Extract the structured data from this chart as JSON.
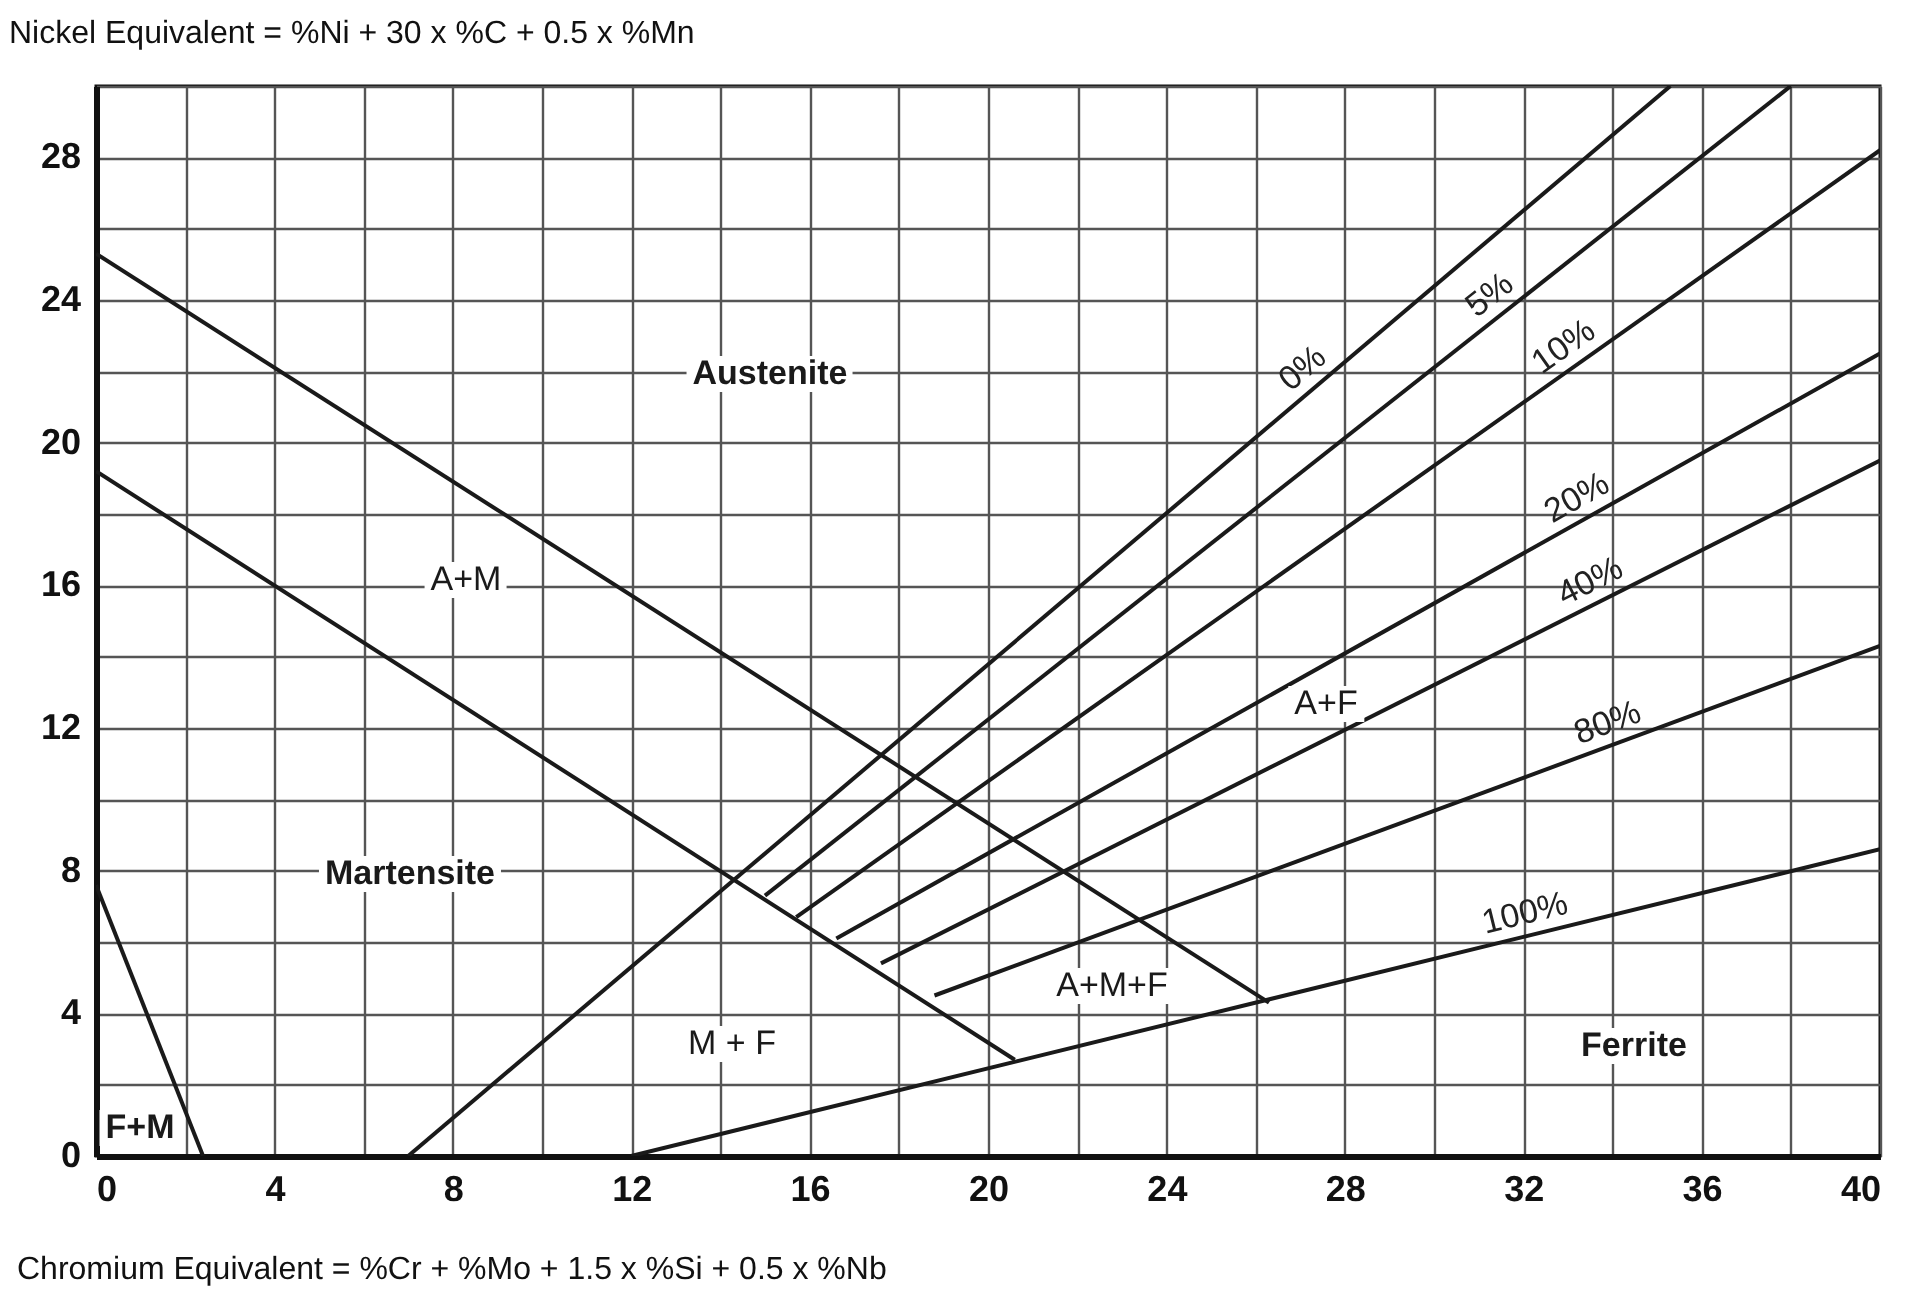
{
  "chart_data": {
    "type": "line",
    "xlabel": "Chromium   Equivalent = %Cr + %Mo + 1.5 x %Si + 0.5 x %Nb",
    "ylabel": "Nickel Equivalent = %Ni + 30 x %C + 0.5 x %Mn",
    "xlim": [
      0,
      40
    ],
    "ylim": [
      0,
      30
    ],
    "xticks": [
      0,
      {
        "value": 2,
        "label": null
      },
      4,
      {
        "value": 6,
        "label": null
      },
      8,
      {
        "value": 10,
        "label": null
      },
      12,
      {
        "value": 14,
        "label": null
      },
      16,
      {
        "value": 18,
        "label": null
      },
      20,
      {
        "value": 22,
        "label": null
      },
      24,
      {
        "value": 26,
        "label": null
      },
      28,
      {
        "value": 30,
        "label": null
      },
      32,
      {
        "value": 34,
        "label": null
      },
      36,
      {
        "value": 38,
        "label": null
      },
      40
    ],
    "yticks": [
      0,
      {
        "value": 2,
        "label": null
      },
      4,
      {
        "value": 6,
        "label": null
      },
      8,
      {
        "value": 10,
        "label": null
      },
      12,
      {
        "value": 14,
        "label": null
      },
      16,
      {
        "value": 18,
        "label": null
      },
      20,
      {
        "value": 22,
        "label": null
      },
      24,
      {
        "value": 26,
        "label": null
      },
      28,
      {
        "value": 30,
        "label": null
      }
    ],
    "grid": true,
    "marker": "none",
    "line_style": "solid",
    "series": [
      {
        "color": "#1a1a1a",
        "x": [
          0,
          2.4
        ],
        "values": [
          7.6,
          0
        ]
      },
      {
        "color": "#1a1a1a",
        "x": [
          0,
          20.6
        ],
        "values": [
          19.2,
          2.7
        ]
      },
      {
        "color": "#1a1a1a",
        "x": [
          0,
          26.3
        ],
        "values": [
          25.3,
          4.3
        ]
      },
      {
        "name": "0%",
        "color": "#1a1a1a",
        "x": [
          7,
          35.3
        ],
        "values": [
          0,
          30
        ]
      },
      {
        "name": "5%",
        "color": "#1a1a1a",
        "x": [
          15,
          38
        ],
        "values": [
          7.3,
          30
        ]
      },
      {
        "name": "10%",
        "color": "#1a1a1a",
        "x": [
          15.7,
          40
        ],
        "values": [
          6.7,
          28.2
        ]
      },
      {
        "name": "20%",
        "color": "#1a1a1a",
        "x": [
          16.6,
          40
        ],
        "values": [
          6.1,
          22.5
        ]
      },
      {
        "name": "40%",
        "color": "#1a1a1a",
        "x": [
          17.6,
          40
        ],
        "values": [
          5.4,
          19.5
        ]
      },
      {
        "name": "80%",
        "color": "#1a1a1a",
        "x": [
          18.8,
          40
        ],
        "values": [
          4.5,
          14.3
        ]
      },
      {
        "name": "100%",
        "color": "#1a1a1a",
        "x": [
          12,
          40
        ],
        "values": [
          0,
          8.6
        ]
      }
    ],
    "annotations": [
      "Austenite",
      "A+M",
      "Martensite",
      "F+M",
      "M + F",
      "A+F",
      "A+M+F",
      "Ferrite"
    ]
  }
}
